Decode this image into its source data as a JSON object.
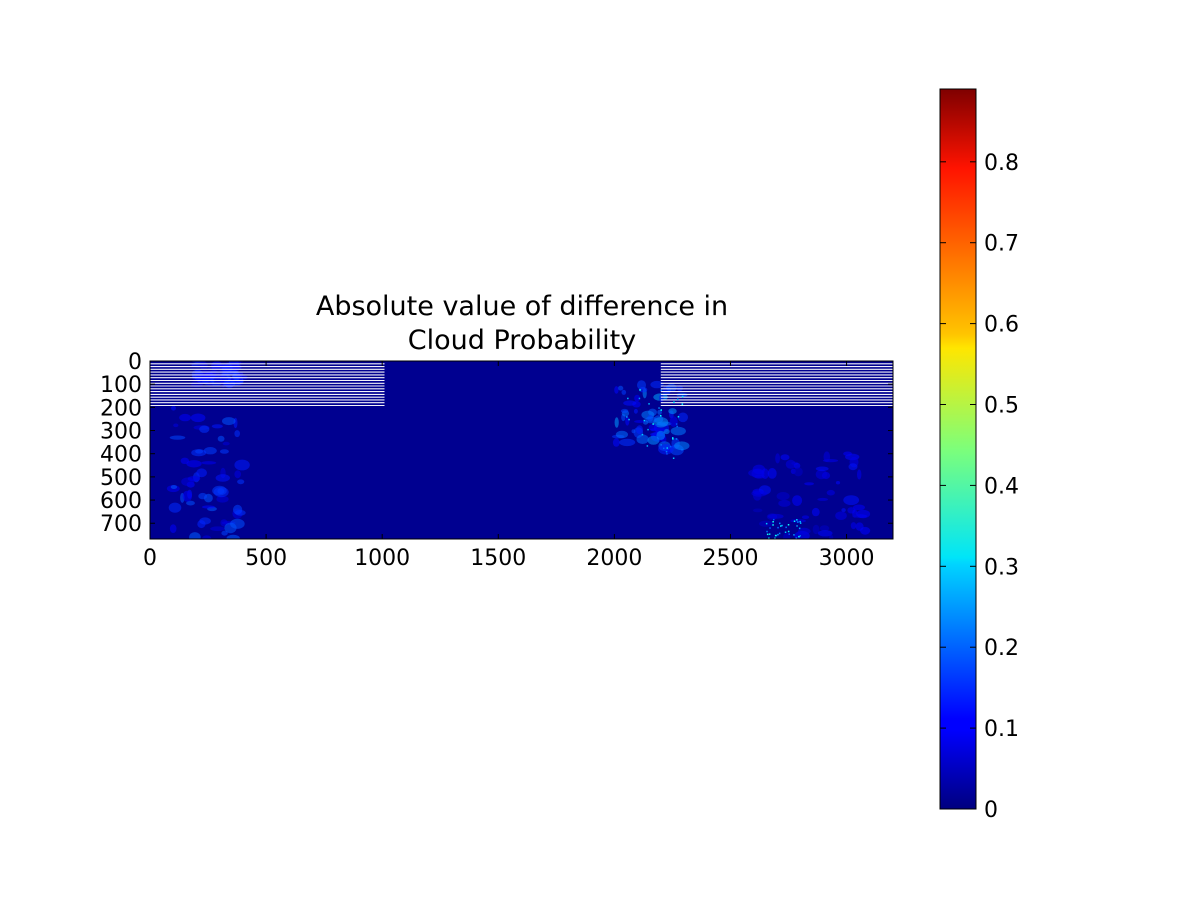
{
  "chart_data": {
    "type": "heatmap",
    "title_lines": [
      "Absolute value of difference in",
      "Cloud Probability"
    ],
    "xlabel": "",
    "ylabel": "",
    "xlim": [
      0,
      3200
    ],
    "ylim": [
      768,
      0
    ],
    "xticks": [
      0,
      500,
      1000,
      1500,
      2000,
      2500,
      3000
    ],
    "xtick_labels": [
      "0",
      "500",
      "1000",
      "1500",
      "2000",
      "2500",
      "3000"
    ],
    "yticks": [
      0,
      100,
      200,
      300,
      400,
      500,
      600,
      700
    ],
    "ytick_labels": [
      "0",
      "100",
      "200",
      "300",
      "400",
      "500",
      "600",
      "700"
    ],
    "colormap": "jet",
    "colorbar": {
      "range": [
        0,
        0.89
      ],
      "ticks": [
        0,
        0.1,
        0.2,
        0.3,
        0.4,
        0.5,
        0.6,
        0.7,
        0.8
      ],
      "tick_labels": [
        "0",
        "0.1",
        "0.2",
        "0.3",
        "0.4",
        "0.5",
        "0.6",
        "0.7",
        "0.8"
      ],
      "placement": "right"
    },
    "typical_value": 0.03,
    "max_observed_value": 0.35,
    "elevated_regions": [
      {
        "x_range": [
          100,
          400
        ],
        "y_range": [
          200,
          768
        ],
        "approx_value": 0.15
      },
      {
        "x_range": [
          200,
          400
        ],
        "y_range": [
          0,
          100
        ],
        "approx_value": 0.12
      },
      {
        "x_range": [
          2000,
          2300
        ],
        "y_range": [
          100,
          400
        ],
        "approx_value": 0.2
      },
      {
        "x_range": [
          2600,
          3100
        ],
        "y_range": [
          400,
          768
        ],
        "approx_value": 0.1
      }
    ],
    "striped_bands": [
      {
        "x_range": [
          0,
          1010
        ],
        "y_range": [
          0,
          200
        ]
      },
      {
        "x_range": [
          2200,
          3200
        ],
        "y_range": [
          0,
          200
        ]
      }
    ],
    "grid": false
  }
}
